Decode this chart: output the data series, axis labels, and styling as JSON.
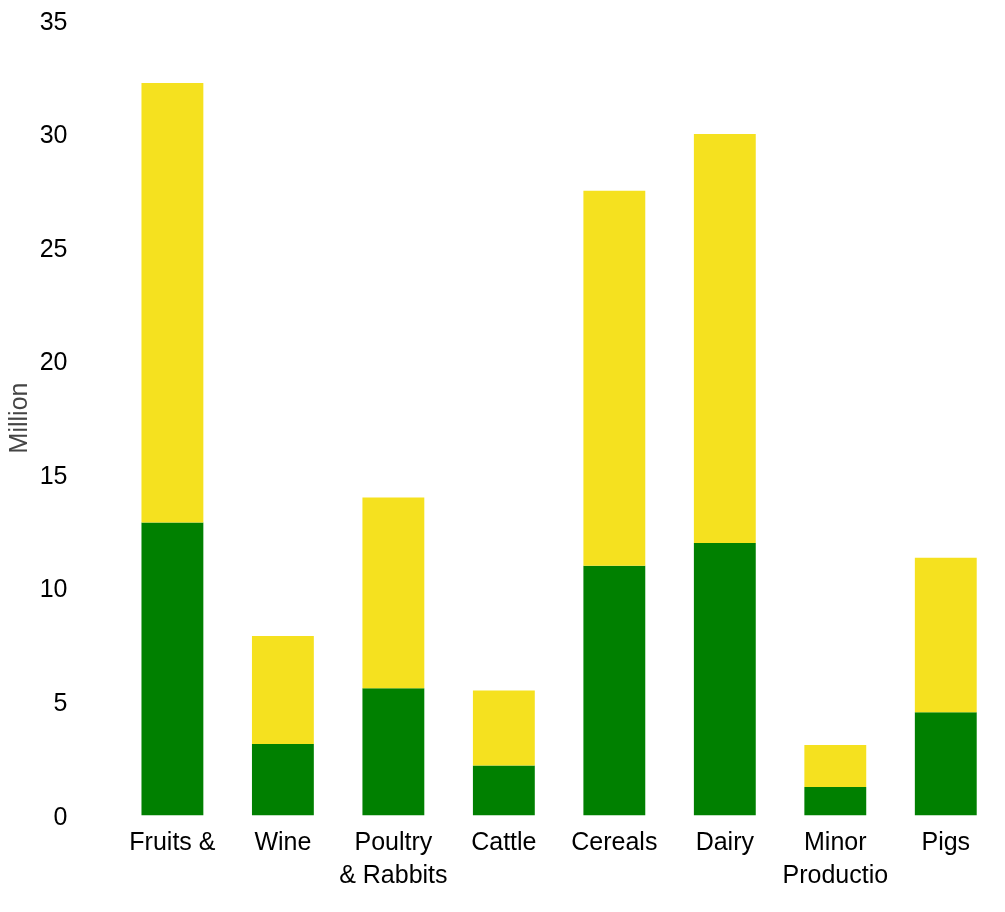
{
  "chart_data": {
    "type": "bar",
    "stacked": true,
    "ylabel": "Million",
    "categories": [
      "Fruits &",
      "Wine",
      "Poultry & Rabbits",
      "Cattle",
      "Cereals",
      "Dairy",
      "Minor Productio",
      "Pigs"
    ],
    "series": [
      {
        "color": "#008000",
        "values": [
          12.9,
          3.15,
          5.6,
          2.2,
          11.0,
          12.0,
          1.25,
          4.55
        ]
      },
      {
        "color": "#f5e11f",
        "values": [
          19.35,
          4.75,
          8.4,
          3.3,
          16.5,
          18.0,
          1.85,
          6.8
        ]
      }
    ],
    "ylim": [
      0,
      35
    ],
    "yticks": [
      0,
      5,
      10,
      15,
      20,
      25,
      30,
      35
    ],
    "grid": false
  }
}
